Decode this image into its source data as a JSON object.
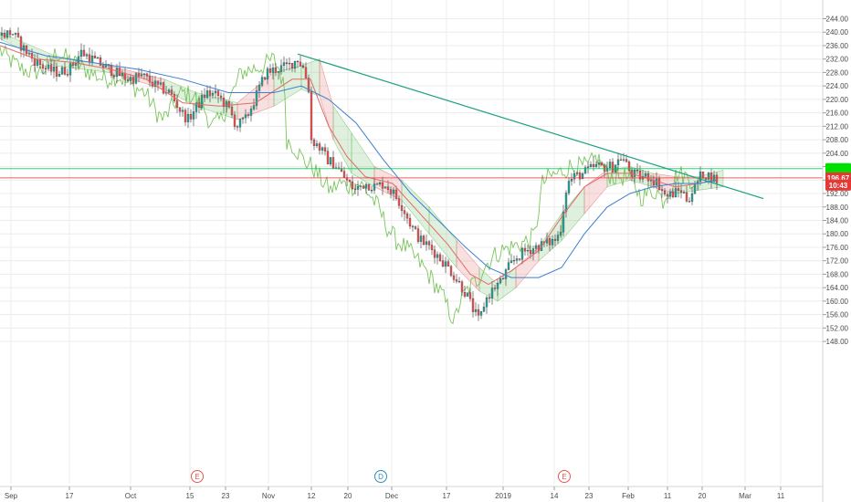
{
  "chart_data": {
    "type": "line",
    "series_type": "candlestick",
    "x_ticks": [
      "Sep",
      "17",
      "Oct",
      "15",
      "23",
      "Nov",
      "12",
      "20",
      "Dec",
      "17",
      "2019",
      "14",
      "23",
      "Feb",
      "11",
      "20",
      "Mar",
      "11"
    ],
    "y_ticks": [
      "244.00",
      "240.00",
      "236.00",
      "232.00",
      "228.00",
      "224.00",
      "220.00",
      "216.00",
      "212.00",
      "208.00",
      "204.00",
      "200.00",
      "196.00",
      "192.00",
      "188.00",
      "184.00",
      "180.00",
      "176.00",
      "172.00",
      "168.00",
      "164.00",
      "160.00",
      "156.00",
      "152.00",
      "148.00"
    ],
    "ylim": [
      146,
      246
    ],
    "price_path": [
      [
        0,
        239
      ],
      [
        12,
        240
      ],
      [
        22,
        236
      ],
      [
        35,
        232
      ],
      [
        50,
        229
      ],
      [
        62,
        228
      ],
      [
        75,
        229
      ],
      [
        88,
        234
      ],
      [
        100,
        232
      ],
      [
        112,
        230
      ],
      [
        125,
        228
      ],
      [
        140,
        226
      ],
      [
        155,
        227
      ],
      [
        170,
        224
      ],
      [
        185,
        222
      ],
      [
        198,
        216
      ],
      [
        205,
        214
      ],
      [
        215,
        218
      ],
      [
        225,
        222
      ],
      [
        238,
        221
      ],
      [
        250,
        217
      ],
      [
        258,
        212
      ],
      [
        268,
        214
      ],
      [
        278,
        220
      ],
      [
        290,
        228
      ],
      [
        302,
        229
      ],
      [
        315,
        230
      ],
      [
        325,
        232
      ],
      [
        332,
        229
      ],
      [
        338,
        222
      ],
      [
        340,
        208
      ],
      [
        348,
        206
      ],
      [
        358,
        202
      ],
      [
        368,
        200
      ],
      [
        378,
        196
      ],
      [
        388,
        193
      ],
      [
        398,
        195
      ],
      [
        410,
        194
      ],
      [
        420,
        195
      ],
      [
        430,
        192
      ],
      [
        440,
        188
      ],
      [
        450,
        182
      ],
      [
        460,
        178
      ],
      [
        470,
        176
      ],
      [
        480,
        173
      ],
      [
        490,
        170
      ],
      [
        500,
        166
      ],
      [
        510,
        162
      ],
      [
        518,
        157
      ],
      [
        524,
        154
      ],
      [
        530,
        160
      ],
      [
        540,
        164
      ],
      [
        548,
        166
      ],
      [
        556,
        170
      ],
      [
        565,
        173
      ],
      [
        575,
        175
      ],
      [
        585,
        176
      ],
      [
        595,
        177
      ],
      [
        606,
        178
      ],
      [
        612,
        180
      ],
      [
        620,
        195
      ],
      [
        628,
        197
      ],
      [
        638,
        198
      ],
      [
        650,
        200
      ],
      [
        660,
        200
      ],
      [
        670,
        200
      ],
      [
        680,
        203
      ],
      [
        690,
        198
      ],
      [
        700,
        197
      ],
      [
        710,
        197
      ],
      [
        720,
        195
      ],
      [
        728,
        191
      ],
      [
        736,
        192
      ],
      [
        745,
        193
      ],
      [
        752,
        190
      ],
      [
        760,
        194
      ],
      [
        768,
        198
      ],
      [
        778,
        197
      ],
      [
        784,
        196
      ]
    ],
    "sma_fast": [
      [
        0,
        236
      ],
      [
        40,
        232
      ],
      [
        80,
        231
      ],
      [
        120,
        229
      ],
      [
        160,
        226
      ],
      [
        200,
        219
      ],
      [
        240,
        218
      ],
      [
        280,
        219
      ],
      [
        320,
        226
      ],
      [
        340,
        226
      ],
      [
        360,
        212
      ],
      [
        380,
        203
      ],
      [
        400,
        197
      ],
      [
        430,
        195
      ],
      [
        460,
        186
      ],
      [
        490,
        177
      ],
      [
        515,
        168
      ],
      [
        535,
        165
      ],
      [
        560,
        169
      ],
      [
        590,
        175
      ],
      [
        615,
        185
      ],
      [
        640,
        194
      ],
      [
        665,
        198
      ],
      [
        690,
        198
      ],
      [
        715,
        196
      ],
      [
        740,
        194
      ],
      [
        765,
        195
      ],
      [
        785,
        196
      ]
    ],
    "sma_slow": [
      [
        0,
        237
      ],
      [
        50,
        233
      ],
      [
        100,
        231
      ],
      [
        150,
        229
      ],
      [
        200,
        226
      ],
      [
        250,
        222
      ],
      [
        300,
        222
      ],
      [
        330,
        224
      ],
      [
        360,
        220
      ],
      [
        390,
        213
      ],
      [
        420,
        202
      ],
      [
        450,
        192
      ],
      [
        480,
        184
      ],
      [
        510,
        176
      ],
      [
        535,
        170
      ],
      [
        560,
        167
      ],
      [
        590,
        167
      ],
      [
        615,
        170
      ],
      [
        640,
        180
      ],
      [
        665,
        188
      ],
      [
        690,
        192
      ],
      [
        715,
        194
      ],
      [
        740,
        195
      ],
      [
        765,
        195
      ],
      [
        785,
        196
      ]
    ],
    "cloud": [
      [
        0,
        238,
        240
      ],
      [
        60,
        230,
        233
      ],
      [
        120,
        228,
        230
      ],
      [
        180,
        223,
        226
      ],
      [
        215,
        218,
        222
      ],
      [
        260,
        214,
        219
      ],
      [
        300,
        218,
        228
      ],
      [
        330,
        223,
        230
      ],
      [
        350,
        221,
        232
      ],
      [
        365,
        208,
        218
      ],
      [
        385,
        198,
        210
      ],
      [
        410,
        194,
        200
      ],
      [
        440,
        190,
        196
      ],
      [
        470,
        180,
        188
      ],
      [
        500,
        170,
        178
      ],
      [
        525,
        163,
        170
      ],
      [
        545,
        160,
        165
      ],
      [
        565,
        164,
        170
      ],
      [
        590,
        172,
        176
      ],
      [
        615,
        178,
        186
      ],
      [
        640,
        186,
        194
      ],
      [
        665,
        194,
        199
      ],
      [
        690,
        196,
        200
      ],
      [
        715,
        194,
        198
      ],
      [
        740,
        192,
        197
      ],
      [
        765,
        193,
        197
      ],
      [
        792,
        194,
        199
      ]
    ],
    "trend_line": {
      "from": [
        0,
        233.5
      ],
      "to": [
        0,
        190.5
      ]
    },
    "horizontal_levels": [
      {
        "name": "green-level",
        "value": 199.4,
        "color": "#00c853"
      },
      {
        "name": "red-level",
        "value": 196.67,
        "color": "#e53935"
      }
    ],
    "price_tags": [
      {
        "name": "last-price-tag",
        "value": 199.4,
        "text": "",
        "color": "#00e000"
      },
      {
        "name": "current-price-tag",
        "value": 196.67,
        "text": "196.67",
        "color": "#e53935"
      },
      {
        "name": "countdown-tag",
        "value": 194.5,
        "text": "10:43",
        "color": "#e53935"
      }
    ],
    "events": [
      {
        "label": "E",
        "color": "#e05a52"
      },
      {
        "label": "D",
        "color": "#2f8fb5"
      },
      {
        "label": "E",
        "color": "#e05a52"
      }
    ],
    "colors": {
      "grid": "#ececec",
      "up_candle": "#26a69a",
      "down_candle": "#ef5350",
      "lagging_span": "#6bbf4a",
      "sma_fast": "#e26a6a",
      "sma_slow": "#3d7fcf",
      "cloud_bull": "#6fbf6a",
      "cloud_bear": "#e57373",
      "trend_line": "#1aa080"
    },
    "legend": "none",
    "grid": true
  }
}
